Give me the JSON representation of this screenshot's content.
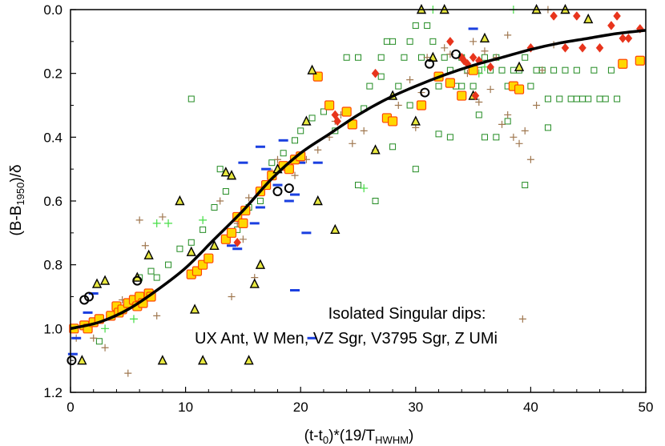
{
  "chart_data": {
    "type": "scatter",
    "title": "",
    "xlabel": {
      "main": "(t-t",
      "sub1": "0",
      "mid": ")*(19/T",
      "sub2": "HWHM",
      "end": ")"
    },
    "ylabel": {
      "main": "(B-B",
      "sub": "1950",
      "end": ")/δ"
    },
    "xlim": [
      0,
      50
    ],
    "ylim": [
      0,
      1.2
    ],
    "y_inverted": true,
    "xticks": [
      0,
      10,
      20,
      30,
      40,
      50
    ],
    "xtick_labels": [
      "0",
      "10",
      "20",
      "30",
      "40",
      "50"
    ],
    "yticks": [
      0,
      0.2,
      0.4,
      0.6,
      0.8,
      1.0,
      1.2
    ],
    "ytick_labels": [
      "0.0",
      "0.2",
      "0.4",
      "0.6",
      "0.8",
      "1.0",
      "1.2"
    ],
    "annotation": [
      "Isolated Singular dips:",
      "UX Ant, W Men, VZ Sgr, V3795 Sgr, Z UMi"
    ],
    "colors": {
      "square_fill": "#ffd700",
      "square_edge": "#ff4500",
      "triangle_fill": "#e8e840",
      "open_square": "#228b22",
      "plus_brown": "#a07850",
      "plus_green": "#44dd44",
      "diamond": "#e8341c",
      "dash": "#1a3fe0",
      "curve": "#000000"
    },
    "series": [
      {
        "name": "model-curve",
        "marker": "line",
        "x": [
          0,
          2.5,
          5,
          7.5,
          10,
          12.5,
          15,
          17.5,
          20,
          22.5,
          25,
          27.5,
          30,
          32.5,
          35,
          37.5,
          40,
          42.5,
          45,
          47.5,
          50
        ],
        "y": [
          1.0,
          0.98,
          0.94,
          0.88,
          0.81,
          0.72,
          0.63,
          0.53,
          0.45,
          0.39,
          0.33,
          0.28,
          0.24,
          0.205,
          0.175,
          0.15,
          0.125,
          0.105,
          0.09,
          0.075,
          0.065
        ]
      },
      {
        "name": "yellow-squares",
        "marker": "square",
        "x": [
          0.3,
          1.2,
          1.5,
          2.0,
          2.5,
          3.5,
          4.0,
          4.2,
          4.5,
          5.0,
          5.5,
          5.8,
          6.0,
          6.3,
          6.8,
          7.0,
          10.5,
          11.0,
          11.5,
          12.0,
          13.5,
          14.0,
          14.5,
          15.0,
          15.2,
          16.5,
          17.0,
          17.5,
          18.5,
          19.0,
          19.5,
          20.0,
          21.5,
          22.5,
          24.0,
          24.5,
          27.5,
          28.0,
          30.5,
          32.0,
          33.0,
          34.0,
          35.0,
          38.5,
          39.0,
          48.0,
          49.5
        ],
        "y": [
          1.0,
          0.99,
          1.0,
          0.98,
          0.97,
          0.96,
          0.93,
          0.95,
          0.94,
          0.92,
          0.91,
          0.93,
          0.9,
          0.92,
          0.89,
          0.9,
          0.83,
          0.82,
          0.8,
          0.78,
          0.72,
          0.7,
          0.65,
          0.67,
          0.63,
          0.57,
          0.55,
          0.52,
          0.49,
          0.5,
          0.47,
          0.46,
          0.21,
          0.3,
          0.32,
          0.36,
          0.34,
          0.35,
          0.3,
          0.21,
          0.23,
          0.27,
          0.19,
          0.24,
          0.25,
          0.17,
          0.16
        ]
      },
      {
        "name": "triangles",
        "marker": "triangle",
        "x": [
          1.0,
          2.3,
          3.0,
          5.8,
          6.8,
          8.0,
          9.5,
          10.5,
          10.8,
          11.5,
          12.5,
          13.5,
          14.0,
          15.5,
          16.0,
          16.5,
          18.0,
          20.5,
          21.0,
          21.5,
          23.0,
          26.5,
          28.0,
          30.0,
          30.5,
          31.5,
          32.5,
          35.0,
          36.0,
          39.0,
          40.5,
          43.0,
          45.0
        ],
        "y": [
          1.1,
          0.86,
          0.85,
          0.84,
          0.77,
          1.1,
          0.6,
          0.76,
          0.94,
          1.1,
          0.74,
          0.51,
          0.52,
          1.1,
          0.86,
          0.8,
          0.5,
          0.35,
          0.19,
          0.6,
          0.69,
          0.44,
          0.27,
          0.35,
          0.0,
          0.15,
          0.0,
          0.27,
          0.09,
          0.18,
          0.0,
          0.0,
          0.03
        ]
      },
      {
        "name": "open-circles",
        "marker": "circle",
        "x": [
          0.1,
          1.2,
          1.6,
          5.8,
          18.0,
          19.0,
          30.8,
          31.2,
          33.5
        ],
        "y": [
          1.1,
          0.91,
          0.9,
          0.85,
          0.57,
          0.56,
          0.26,
          0.17,
          0.14
        ]
      },
      {
        "name": "open-green-squares",
        "marker": "open-square",
        "x": [
          2.5,
          6.0,
          7.0,
          7.5,
          8.5,
          9.5,
          10.5,
          11.5,
          12.5,
          13.0,
          13.5,
          14.5,
          15.5,
          16.5,
          17.0,
          17.5,
          18.5,
          19.5,
          20.0,
          21.0,
          22.0,
          23.0,
          24.0,
          25.0,
          25.5,
          26.0,
          27.0,
          27.5,
          28.0,
          28.5,
          29.0,
          29.5,
          30.0,
          30.5,
          31.0,
          31.5,
          32.0,
          32.5,
          33.0,
          33.5,
          34.0,
          34.5,
          35.0,
          35.5,
          36.0,
          36.5,
          37.0,
          37.5,
          38.0,
          38.5,
          39.0,
          39.5,
          40.0,
          40.5,
          41.0,
          41.5,
          42.0,
          42.5,
          43.0,
          43.5,
          44.0,
          44.5,
          45.0,
          45.5,
          46.0,
          46.5,
          47.0,
          47.5,
          10.5,
          27.0,
          33.0,
          36.0,
          38.0,
          25.0,
          28.0,
          30.0,
          32.0,
          34.0,
          37.0,
          39.5,
          41.5,
          44.0,
          35.5,
          26.5,
          29.5
        ],
        "y": [
          1.04,
          0.84,
          0.82,
          0.84,
          0.8,
          0.75,
          0.73,
          0.69,
          0.62,
          0.5,
          0.57,
          0.69,
          0.62,
          0.6,
          0.55,
          0.48,
          0.45,
          0.41,
          0.38,
          0.34,
          0.32,
          0.38,
          0.15,
          0.15,
          0.31,
          0.24,
          0.15,
          0.1,
          0.1,
          0.24,
          0.15,
          0.1,
          0.05,
          0.15,
          0.05,
          0.1,
          0.24,
          0.15,
          0.19,
          0.24,
          0.15,
          0.19,
          0.24,
          0.19,
          0.15,
          0.19,
          0.15,
          0.19,
          0.24,
          0.19,
          0.19,
          0.15,
          0.24,
          0.19,
          0.19,
          0.28,
          0.19,
          0.28,
          0.19,
          0.28,
          0.19,
          0.28,
          0.28,
          0.19,
          0.28,
          0.28,
          0.19,
          0.28,
          0.28,
          0.21,
          0.4,
          0.4,
          0.35,
          0.55,
          0.43,
          0.5,
          0.39,
          0.24,
          0.4,
          0.55,
          0.37,
          0.28,
          0.33,
          0.6,
          0.3
        ]
      },
      {
        "name": "brown-plus",
        "marker": "plus",
        "x": [
          0.5,
          3.0,
          5.0,
          6.0,
          6.5,
          8.0,
          12.0,
          14.0,
          14.5,
          15.0,
          16.0,
          18.0,
          19.5,
          20.5,
          21.5,
          22.5,
          23.5,
          24.5,
          25.5,
          26.5,
          28.5,
          29.5,
          30.5,
          31.0,
          32.5,
          33.0,
          34.5,
          35.0,
          35.5,
          36.5,
          37.0,
          37.5,
          38.0,
          38.5,
          39.0,
          39.3,
          40.0,
          40.5,
          41.0,
          41.5,
          42.0,
          13.0,
          15.5,
          17.5,
          23.0,
          30.0,
          36.0,
          38.0,
          39.5,
          2.0,
          4.5,
          7.5
        ],
        "y": [
          1.03,
          1.06,
          1.14,
          0.66,
          0.74,
          0.65,
          0.78,
          0.9,
          0.67,
          0.72,
          0.84,
          0.47,
          0.52,
          0.47,
          0.44,
          0.4,
          0.33,
          0.42,
          0.38,
          0.44,
          0.3,
          0.22,
          0.26,
          0.15,
          0.12,
          0.14,
          0.2,
          0.1,
          0.29,
          0.25,
          0.15,
          0.36,
          0.33,
          0.4,
          0.42,
          0.97,
          0.47,
          0.3,
          0.19,
          0.0,
          0.11,
          0.6,
          0.59,
          0.51,
          0.35,
          0.37,
          0.13,
          0.08,
          0.38,
          1.03,
          0.91,
          0.96
        ]
      },
      {
        "name": "green-plus",
        "marker": "plus",
        "x": [
          3.0,
          5.5,
          7.5,
          8.5,
          11.5,
          25.5,
          31.5,
          35.5,
          36.0,
          38.5
        ],
        "y": [
          1.0,
          0.97,
          0.67,
          0.67,
          0.66,
          0.56,
          0.0,
          0.2,
          0.18,
          0.0
        ]
      },
      {
        "name": "red-diamonds",
        "marker": "diamond",
        "x": [
          14.5,
          23.0,
          23.2,
          26.5,
          33.0,
          34.0,
          34.2,
          34.5,
          35.0,
          35.5,
          36.5,
          40.0,
          42.0,
          43.0,
          44.0,
          44.5,
          46.0,
          47.0,
          47.5,
          48.0,
          48.5,
          49.5,
          35.2
        ],
        "y": [
          0.73,
          0.33,
          0.35,
          0.2,
          0.1,
          0.15,
          0.16,
          0.17,
          0.15,
          0.16,
          0.18,
          0.12,
          0.02,
          0.12,
          0.02,
          0.12,
          0.12,
          0.05,
          0.02,
          0.09,
          0.09,
          0.06,
          0.27
        ]
      },
      {
        "name": "blue-dashes",
        "marker": "dash",
        "x": [
          0.2,
          0.5,
          1.5,
          2.0,
          14.0,
          15.0,
          16.0,
          16.5,
          17.0,
          17.5,
          18.0,
          18.5,
          19.5,
          19.5,
          20.0,
          20.5,
          21.0,
          21.5,
          35.0,
          16.5,
          19.0,
          14.5,
          18.5
        ],
        "y": [
          1.08,
          1.03,
          0.95,
          0.89,
          0.74,
          0.48,
          0.67,
          0.43,
          0.5,
          0.53,
          0.55,
          0.41,
          0.88,
          0.58,
          0.48,
          0.7,
          1.03,
          0.48,
          0.06,
          0.62,
          0.6,
          0.75,
          0.5
        ]
      }
    ]
  }
}
